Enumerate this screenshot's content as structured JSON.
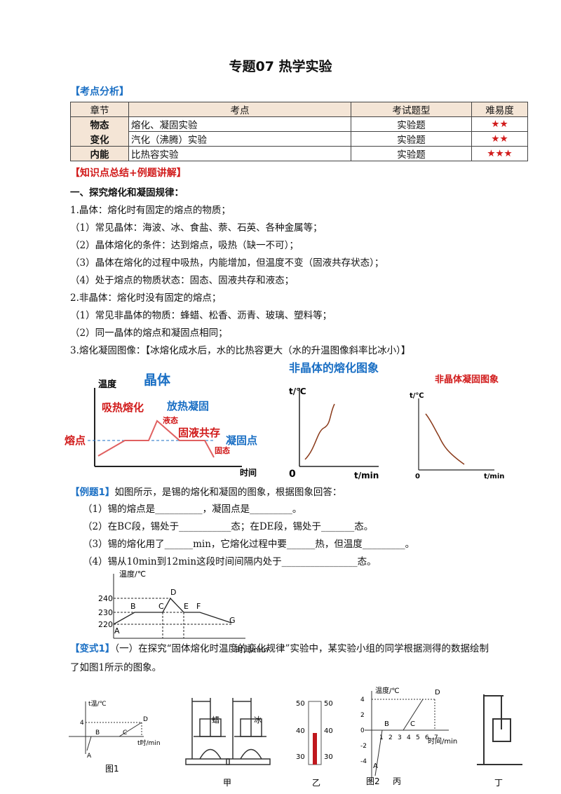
{
  "title": "专题07 热学实验",
  "analysis": {
    "label": "【考点分析】",
    "table": {
      "header": [
        "章节",
        "考点",
        "考试题型",
        "难易度"
      ],
      "rows": [
        [
          "物态",
          "熔化、凝固实验",
          "实验题",
          "★★"
        ],
        [
          "变化",
          "汽化（沸腾）实验",
          "实验题",
          "★★"
        ],
        [
          "内能",
          "比热容实验",
          "实验题",
          "★★★"
        ]
      ]
    }
  },
  "summary": {
    "label": "【知识点总结+例题讲解】",
    "heading": "一、探究熔化和凝固规律：",
    "lines": [
      "1.晶体：熔化时有固定的熔点的物质；",
      "（1）常见晶体：海波、冰、食盐、萘、石英、各种金属等；",
      "（2）晶体熔化的条件：达到熔点，吸热（缺一不可）；",
      "（3）晶体在熔化的过程中吸热，内能增加，但温度不变（固液共存状态）；",
      "（4）处于熔点的物质状态：固态、固液共存和液态；",
      "2.非晶体：熔化时没有固定的熔点；",
      "（1）常见非晶体的物质：蜂蜡、松香、沥青、玻璃、塑料等；",
      "（2）同一晶体的熔点和凝固点相同；",
      "3.熔化凝固图像：【冰熔化成水后，水的比热容更大（水的升温图像斜率比冰小）】"
    ]
  },
  "figure_crystal": {
    "y_label": "温度",
    "title": "晶体",
    "melt": "吸热熔化",
    "solidify": "放热凝固",
    "liquid": "液态",
    "mixed": "固液共存",
    "melting_point": "熔点",
    "freezing_point": "凝固点",
    "solid": "固态",
    "x_label": "时间"
  },
  "figure_amorphous_melt": {
    "title": "非晶体的熔化图象",
    "y_label": "t/℃",
    "origin": "0",
    "x_label": "t/min"
  },
  "figure_amorphous_solidify": {
    "title": "非晶体凝固图象",
    "y_label": "t/℃",
    "origin": "0",
    "x_label": "t/min"
  },
  "example1": {
    "label": "【例题1】",
    "text": "如图所示，是锡的熔化和凝固的图象，根据图象回答：",
    "questions": [
      "（1）锡的熔点是__________，凝固点是_________。",
      "（2）在BC段，锡处于___________态；在DE段，锡处于_______态。",
      "（3）锡的熔化用了______min，它熔化过程中要______热，但温度_________。",
      "（4）锡从10min到12min这段时间间隔内处于________________态。"
    ]
  },
  "tin_graph": {
    "y_label": "温度/℃",
    "x_label": "时间/min",
    "yticks": [
      240,
      230,
      220
    ],
    "points": [
      "A",
      "B",
      "C",
      "D",
      "E",
      "F",
      "G"
    ]
  },
  "variant1": {
    "label": "【变式1】",
    "text": "（一）在探究“固体熔化时温度的变化规律”实验中，某实验小组的同学根据测得的数据绘制了如图1所示的图象。"
  },
  "figure1": {
    "y_label": "t温/℃",
    "x_label": "t时/min",
    "tick": 4,
    "points": [
      "A",
      "B",
      "C",
      "D"
    ],
    "caption": "图1"
  },
  "apparatus": {
    "wax": "蜡",
    "ice": "冰",
    "caption": "甲"
  },
  "thermometer": {
    "ticks": [
      50,
      40,
      30
    ],
    "caption": "乙"
  },
  "figure2": {
    "y_label": "温度/℃",
    "x_label": "时间/min",
    "yticks": [
      4,
      2,
      0,
      -2,
      -4
    ],
    "xticks": [
      1,
      2,
      3,
      4,
      5,
      6,
      7
    ],
    "points": [
      "A",
      "B",
      "C",
      "D"
    ],
    "caption": "图2",
    "sub_caption": "丙"
  },
  "stand": {
    "caption": "丁"
  }
}
